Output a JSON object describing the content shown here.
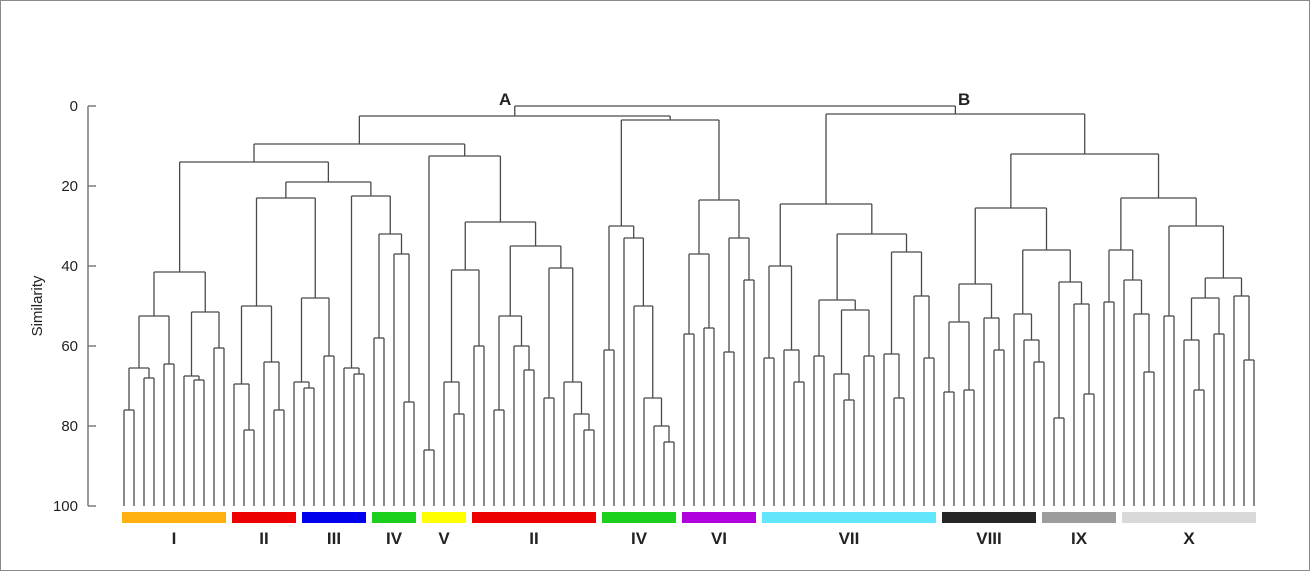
{
  "axis": {
    "title": "Similarity",
    "ticks": [
      "0",
      "20",
      "40",
      "60",
      "80",
      "100"
    ],
    "tick_values": [
      0,
      20,
      40,
      60,
      80,
      100
    ],
    "range": [
      0,
      100
    ]
  },
  "node_labels": {
    "a": "A",
    "b": "B"
  },
  "clusters": [
    {
      "label": "I",
      "color": "#ffb10f",
      "start": 0,
      "end": 10
    },
    {
      "label": "II",
      "color": "#ee0000",
      "start": 11,
      "end": 17
    },
    {
      "label": "III",
      "color": "#0000ee",
      "start": 18,
      "end": 24
    },
    {
      "label": "IV",
      "color": "#1ed01e",
      "start": 25,
      "end": 29
    },
    {
      "label": "V",
      "color": "#ffff00",
      "start": 30,
      "end": 34
    },
    {
      "label": "II",
      "color": "#ee0000",
      "start": 35,
      "end": 47
    },
    {
      "label": "IV",
      "color": "#1ed01e",
      "start": 48,
      "end": 55
    },
    {
      "label": "VI",
      "color": "#b000dd",
      "start": 56,
      "end": 63
    },
    {
      "label": "VII",
      "color": "#62e6fb",
      "start": 64,
      "end": 81
    },
    {
      "label": "VIII",
      "color": "#262626",
      "start": 82,
      "end": 91
    },
    {
      "label": "IX",
      "color": "#9c9c9c",
      "start": 92,
      "end": 99
    },
    {
      "label": "X",
      "color": "#d9d9d9",
      "start": 100,
      "end": 113
    }
  ],
  "dendrogram": {
    "leaf_similarity": 100,
    "tree": [
      0,
      [
        2.5,
        [
          9.5,
          [
            14,
            [
              41.5,
              [
                52.5,
                [
                  65.5,
                  [
                    76,
                    100,
                    100
                  ],
                  [
                    68,
                    100,
                    100
                  ]
                ],
                [
                  64.5,
                  100,
                  100
                ]
              ],
              [
                51.5,
                [
                  67.5,
                  100,
                  [
                    68.5,
                    100,
                    100
                  ]
                ],
                [
                  60.5,
                  100,
                  100
                ]
              ]
            ],
            [
              19,
              [
                23,
                [
                  50,
                  [
                    69.5,
                    100,
                    [
                      81,
                      100,
                      100
                    ]
                  ],
                  [
                    64,
                    100,
                    [
                      76,
                      100,
                      100
                    ]
                  ]
                ],
                [
                  48,
                  [
                    69,
                    100,
                    [
                      70.5,
                      100,
                      100
                    ]
                  ],
                  [
                    62.5,
                    100,
                    100
                  ]
                ]
              ],
              [
                22.5,
                [
                  65.5,
                  100,
                  [
                    67,
                    100,
                    100
                  ]
                ],
                [
                  32,
                  [
                    58,
                    100,
                    100
                  ],
                  [
                    37,
                    100,
                    [
                      74,
                      100,
                      100
                    ]
                  ]
                ]
              ]
            ]
          ],
          [
            12.5,
            [
              86,
              100,
              100
            ],
            [
              29,
              [
                41,
                [
                  69,
                  100,
                  [
                    77,
                    100,
                    100
                  ]
                ],
                [
                  60,
                  100,
                  100
                ]
              ],
              [
                35,
                [
                  52.5,
                  [
                    76,
                    100,
                    100
                  ],
                  [
                    60,
                    100,
                    [
                      66,
                      100,
                      100
                    ]
                  ]
                ],
                [
                  40.5,
                  [
                    73,
                    100,
                    100
                  ],
                  [
                    69,
                    100,
                    [
                      77,
                      100,
                      [
                        81,
                        100,
                        100
                      ]
                    ]
                  ]
                ]
              ]
            ]
          ]
        ],
        [
          3.5,
          [
            30,
            [
              61,
              100,
              100
            ],
            [
              33,
              100,
              [
                50,
                100,
                [
                  73,
                  100,
                  [
                    80,
                    100,
                    [
                      84,
                      100,
                      100
                    ]
                  ]
                ]
              ]
            ]
          ],
          [
            23.5,
            [
              37,
              [
                57,
                100,
                100
              ],
              [
                55.5,
                100,
                100
              ]
            ],
            [
              33,
              [
                61.5,
                100,
                100
              ],
              [
                43.5,
                100,
                100
              ]
            ]
          ]
        ]
      ],
      [
        2,
        [
          24.5,
          [
            40,
            [
              63,
              100,
              100
            ],
            [
              61,
              100,
              [
                69,
                100,
                100
              ]
            ]
          ],
          [
            32,
            [
              48.5,
              [
                62.5,
                100,
                100
              ],
              [
                51,
                [
                  67,
                  100,
                  [
                    73.5,
                    100,
                    100
                  ]
                ],
                [
                  62.5,
                  100,
                  100
                ]
              ]
            ],
            [
              36.5,
              [
                62,
                100,
                [
                  73,
                  100,
                  100
                ]
              ],
              [
                47.5,
                100,
                [
                  63,
                  100,
                  100
                ]
              ]
            ]
          ]
        ],
        [
          12,
          [
            25.5,
            [
              44.5,
              [
                54,
                [
                  71.5,
                  100,
                  100
                ],
                [
                  71,
                  100,
                  100
                ]
              ],
              [
                53,
                100,
                [
                  61,
                  100,
                  100
                ]
              ]
            ],
            [
              36,
              [
                52,
                100,
                [
                  58.5,
                  100,
                  [
                    64,
                    100,
                    100
                  ]
                ]
              ],
              [
                44,
                [
                  78,
                  100,
                  100
                ],
                [
                  49.5,
                  100,
                  [
                    72,
                    100,
                    100
                  ]
                ]
              ]
            ]
          ],
          [
            23,
            [
              36,
              [
                49,
                100,
                100
              ],
              [
                43.5,
                100,
                [
                  52,
                  100,
                  [
                    66.5,
                    100,
                    100
                  ]
                ]
              ]
            ],
            [
              30,
              [
                52.5,
                100,
                100
              ],
              [
                43,
                [
                  48,
                  [
                    58.5,
                    100,
                    [
                      71,
                      100,
                      100
                    ]
                  ],
                  [
                    57,
                    100,
                    100
                  ]
                ],
                [
                  47.5,
                  100,
                  [
                    63.5,
                    100,
                    100
                  ]
                ]
              ]
            ]
          ]
        ]
      ]
    ]
  }
}
